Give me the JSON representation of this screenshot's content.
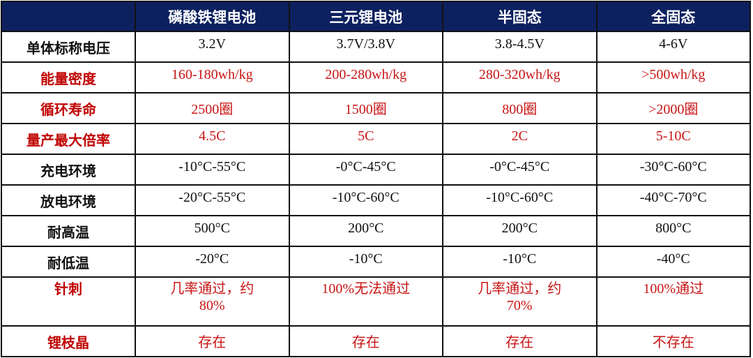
{
  "header": [
    "",
    "磷酸铁锂电池",
    "三元锂电池",
    "半固态",
    "全固态"
  ],
  "rows": [
    {
      "label": "单体标称电压",
      "red": false,
      "values": [
        "3.2V",
        "3.7V/3.8V",
        "3.8-4.5V",
        "4-6V"
      ]
    },
    {
      "label": "能量密度",
      "red": true,
      "values": [
        "160-180wh/kg",
        "200-280wh/kg",
        "280-320wh/kg",
        ">500wh/kg"
      ]
    },
    {
      "label": "循环寿命",
      "red": true,
      "values": [
        "2500圈",
        "1500圈",
        "800圈",
        ">2000圈"
      ]
    },
    {
      "label": "量产最大倍率",
      "red": true,
      "values": [
        "4.5C",
        "5C",
        "2C",
        "5-10C"
      ]
    },
    {
      "label": "充电环境",
      "red": false,
      "values": [
        "-10°C-55°C",
        "-0°C-45°C",
        "-0°C-45°C",
        "-30°C-60°C"
      ]
    },
    {
      "label": "放电环境",
      "red": false,
      "values": [
        "-20°C-55°C",
        "-10°C-60°C",
        "-10°C-60°C",
        "-40°C-70°C"
      ]
    },
    {
      "label": "耐高温",
      "red": false,
      "values": [
        "500°C",
        "200°C",
        "200°C",
        "800°C"
      ]
    },
    {
      "label": "耐低温",
      "red": false,
      "values": [
        "-20°C",
        "-10°C",
        "-10°C",
        "-40°C"
      ]
    },
    {
      "label": "针刺",
      "red": true,
      "values": [
        "几率通过，约80%",
        "100%无法通过",
        "几率通过，约70%",
        "100%通过"
      ]
    },
    {
      "label": "锂枝晶",
      "red": true,
      "values": [
        "存在",
        "存在",
        "存在",
        "不存在"
      ]
    }
  ],
  "colors": {
    "header_bg": "#0d2160",
    "red": "#c81414"
  }
}
